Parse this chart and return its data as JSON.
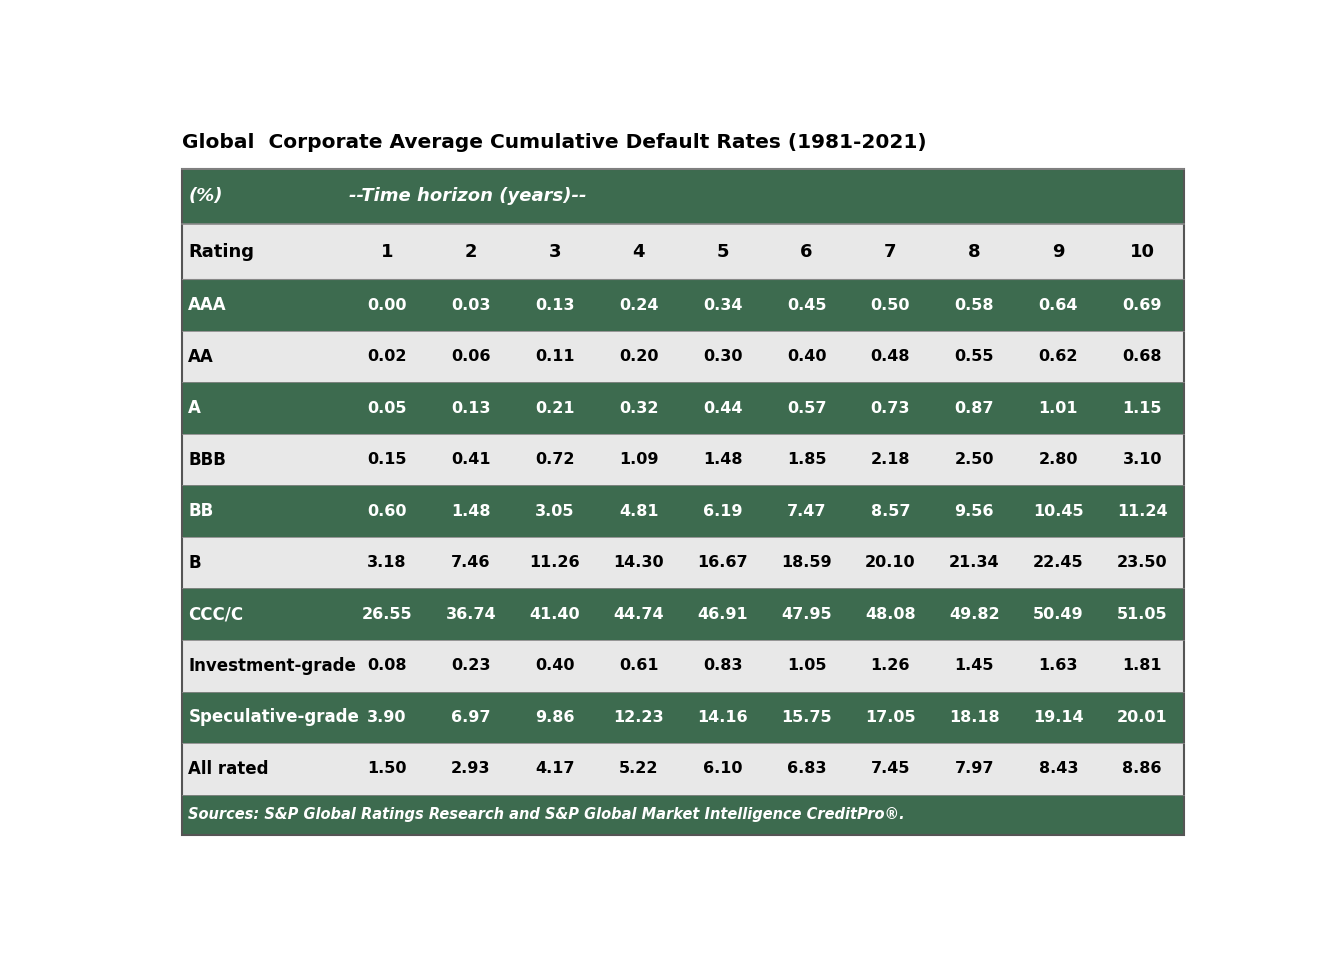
{
  "title": "Global  Corporate Average Cumulative Default Rates (1981-2021)",
  "subtitle_col": "(%)",
  "subtitle_horizon": "--Time horizon (years)--",
  "source": "Sources: S&P Global Ratings Research and S&P Global Market Intelligence CreditPro®.",
  "columns": [
    "Rating",
    "1",
    "2",
    "3",
    "4",
    "5",
    "6",
    "7",
    "8",
    "9",
    "10"
  ],
  "rows": [
    {
      "label": "AAA",
      "values": [
        "0.00",
        "0.03",
        "0.13",
        "0.24",
        "0.34",
        "0.45",
        "0.50",
        "0.58",
        "0.64",
        "0.69"
      ],
      "shaded": true
    },
    {
      "label": "AA",
      "values": [
        "0.02",
        "0.06",
        "0.11",
        "0.20",
        "0.30",
        "0.40",
        "0.48",
        "0.55",
        "0.62",
        "0.68"
      ],
      "shaded": false
    },
    {
      "label": "A",
      "values": [
        "0.05",
        "0.13",
        "0.21",
        "0.32",
        "0.44",
        "0.57",
        "0.73",
        "0.87",
        "1.01",
        "1.15"
      ],
      "shaded": true
    },
    {
      "label": "BBB",
      "values": [
        "0.15",
        "0.41",
        "0.72",
        "1.09",
        "1.48",
        "1.85",
        "2.18",
        "2.50",
        "2.80",
        "3.10"
      ],
      "shaded": false
    },
    {
      "label": "BB",
      "values": [
        "0.60",
        "1.48",
        "3.05",
        "4.81",
        "6.19",
        "7.47",
        "8.57",
        "9.56",
        "10.45",
        "11.24"
      ],
      "shaded": true
    },
    {
      "label": "B",
      "values": [
        "3.18",
        "7.46",
        "11.26",
        "14.30",
        "16.67",
        "18.59",
        "20.10",
        "21.34",
        "22.45",
        "23.50"
      ],
      "shaded": false
    },
    {
      "label": "CCC/C",
      "values": [
        "26.55",
        "36.74",
        "41.40",
        "44.74",
        "46.91",
        "47.95",
        "48.08",
        "49.82",
        "50.49",
        "51.05"
      ],
      "shaded": true
    },
    {
      "label": "Investment-grade",
      "values": [
        "0.08",
        "0.23",
        "0.40",
        "0.61",
        "0.83",
        "1.05",
        "1.26",
        "1.45",
        "1.63",
        "1.81"
      ],
      "shaded": false
    },
    {
      "label": "Speculative-grade",
      "values": [
        "3.90",
        "6.97",
        "9.86",
        "12.23",
        "14.16",
        "15.75",
        "17.05",
        "18.18",
        "19.14",
        "20.01"
      ],
      "shaded": true
    },
    {
      "label": "All rated",
      "values": [
        "1.50",
        "2.93",
        "4.17",
        "5.22",
        "6.10",
        "6.83",
        "7.45",
        "7.97",
        "8.43",
        "8.86"
      ],
      "shaded": false
    }
  ],
  "header_bg": "#3d6b4f",
  "shaded_bg": "#3d6b4f",
  "unshaded_bg": "#e8e8e8",
  "header_text_color": "#ffffff",
  "shaded_text_color": "#ffffff",
  "unshaded_text_color": "#000000",
  "title_color": "#000000",
  "source_bg": "#3d6b4f",
  "source_text_color": "#ffffff",
  "outer_bg": "#ffffff",
  "table_border_color": "#555555",
  "separator_color": "#888888"
}
